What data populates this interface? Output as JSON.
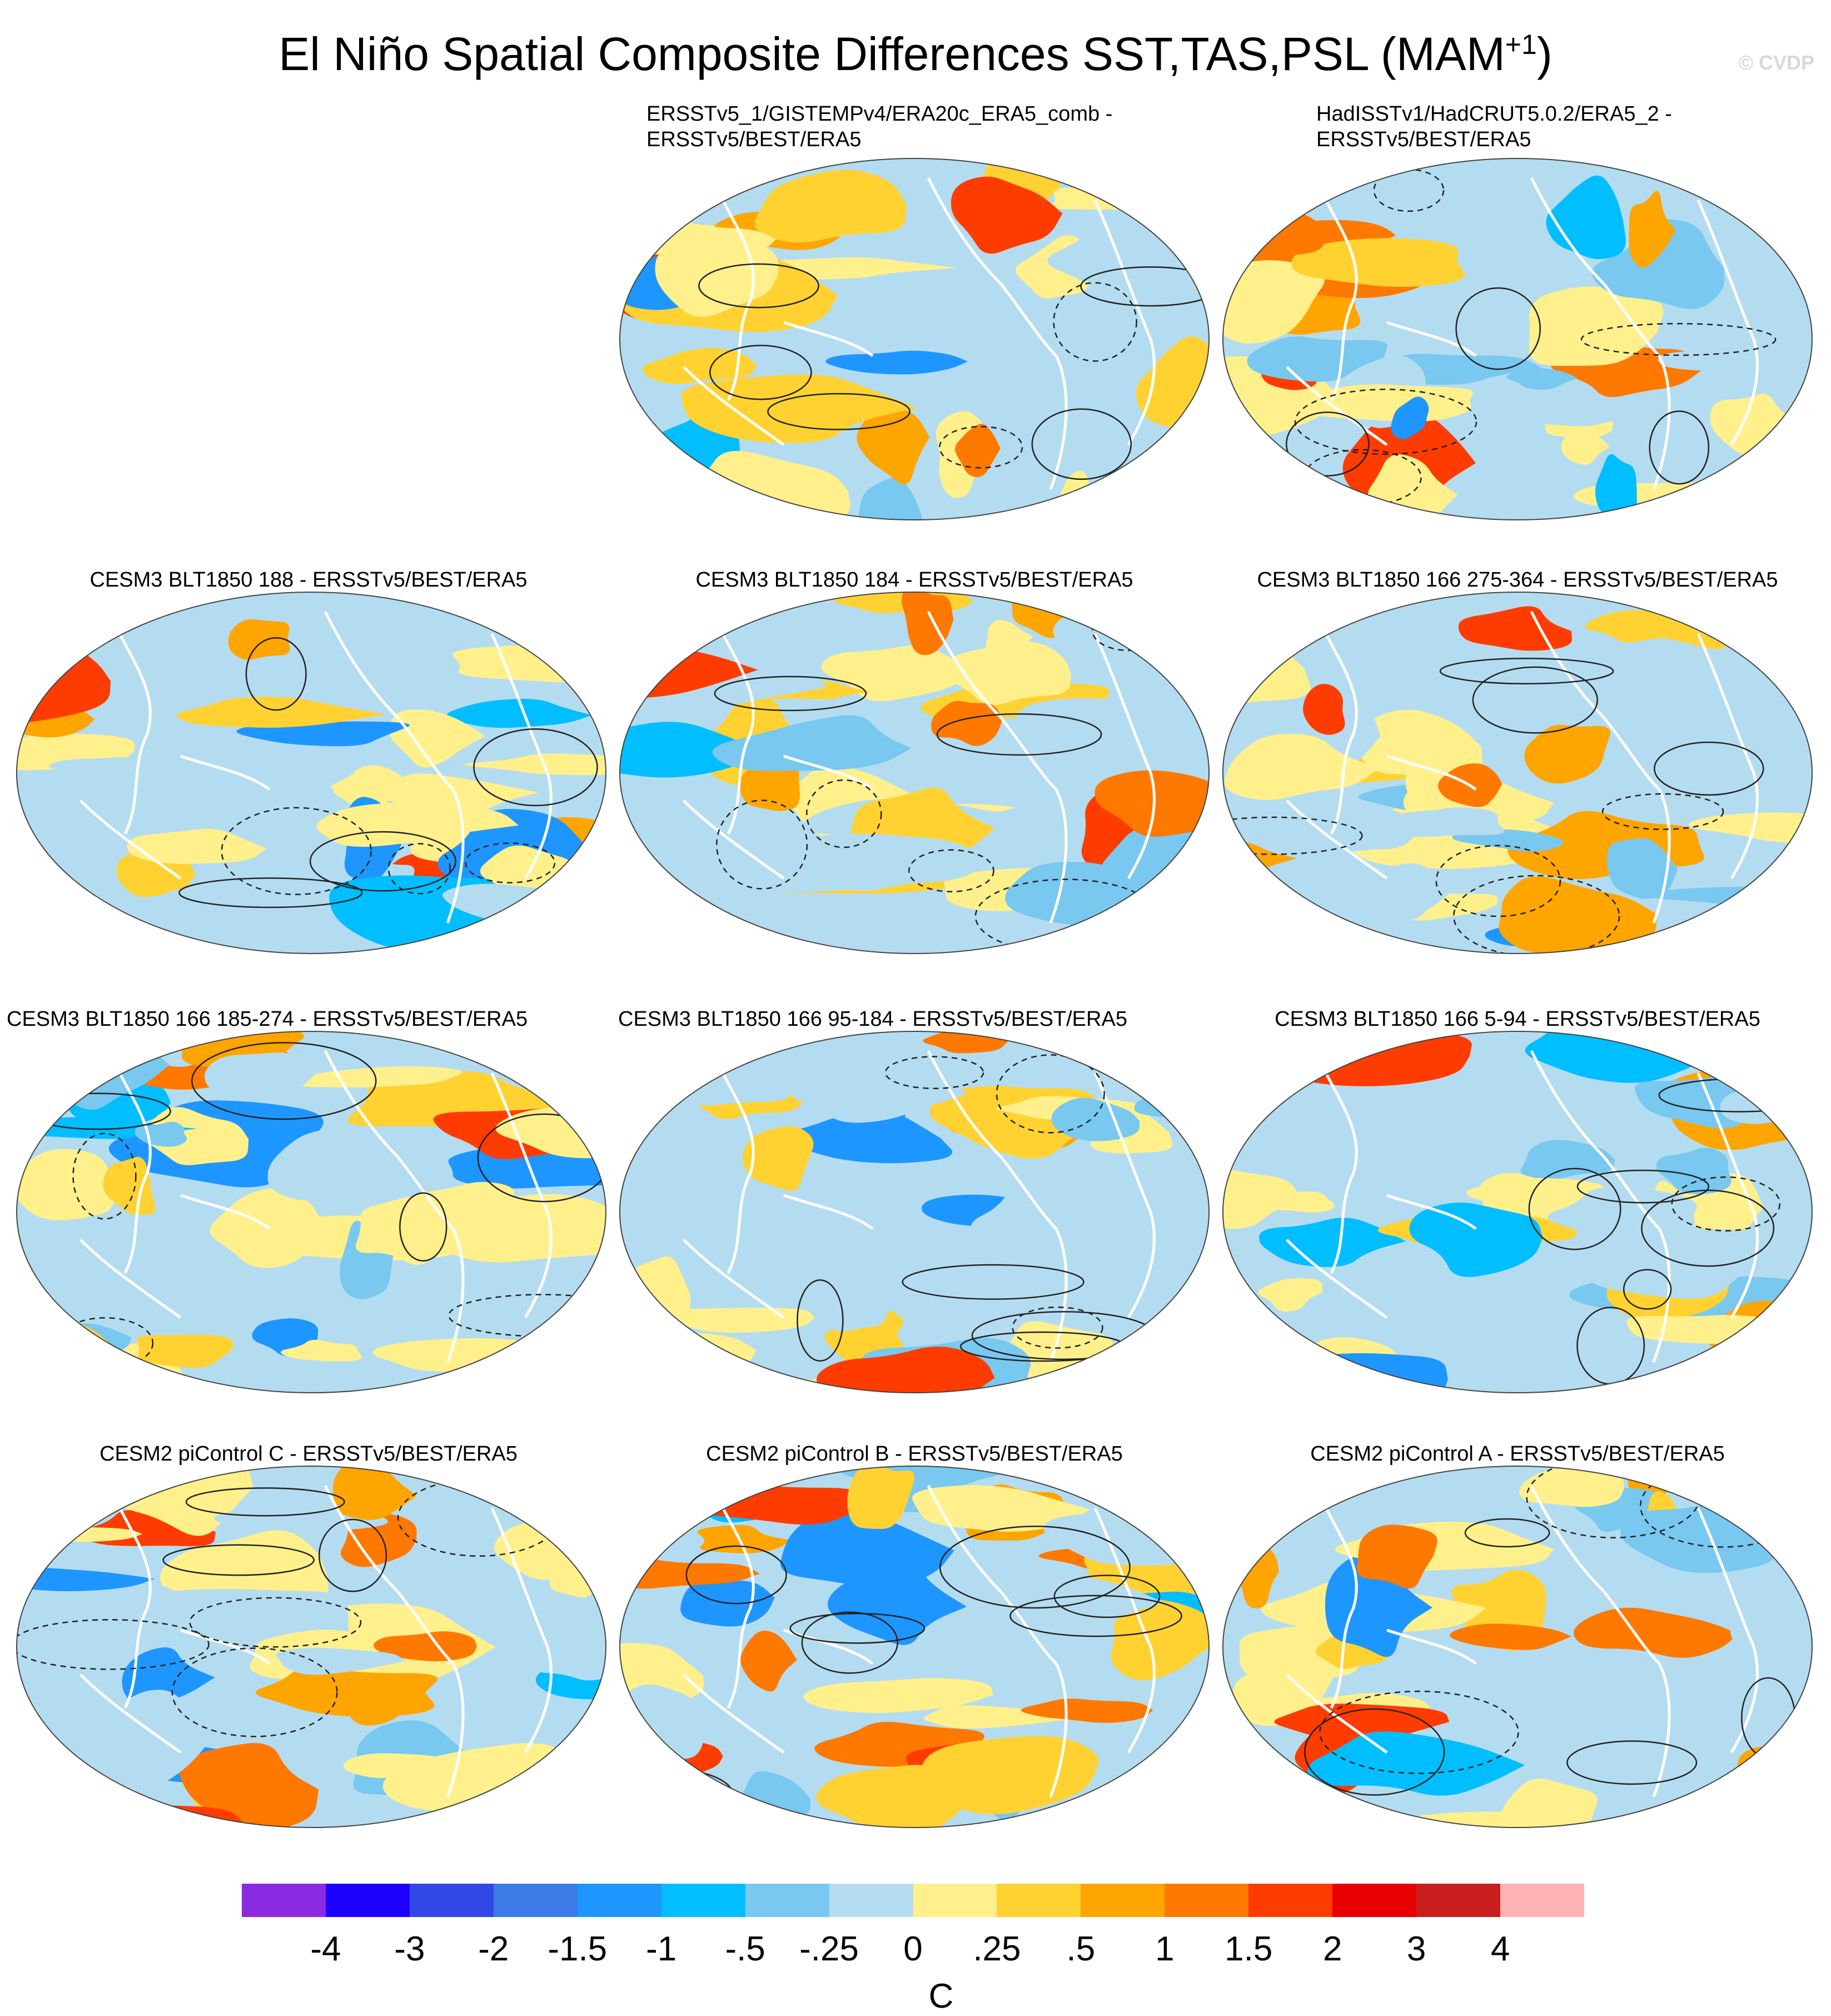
{
  "title": {
    "main": "El Niño Spatial Composite Differences SST,TAS,PSL (MAM",
    "sup": "+1",
    "close": ")"
  },
  "copyright": "© CVDP",
  "panels": [
    {
      "title_lines": [
        "ERSSTv5_1/GISTEMPv4/ERA20c_ERA5_comb -",
        "ERSSTv5/BEST/ERA5"
      ],
      "seed": 11
    },
    {
      "title_lines": [
        "HadISSTv1/HadCRUT5.0.2/ERA5_2 -",
        "ERSSTv5/BEST/ERA5"
      ],
      "seed": 23
    },
    {
      "title_lines": [
        "CESM3 BLT1850 188 - ERSSTv5/BEST/ERA5"
      ],
      "seed": 37
    },
    {
      "title_lines": [
        "CESM3 BLT1850 184 - ERSSTv5/BEST/ERA5"
      ],
      "seed": 41
    },
    {
      "title_lines": [
        "CESM3 BLT1850 166 275-364 - ERSSTv5/BEST/ERA5"
      ],
      "seed": 53
    },
    {
      "title_lines": [
        "CESM3 BLT1850 166 185-274 - ERSSTv5/BEST/ERA5"
      ],
      "seed": 61
    },
    {
      "title_lines": [
        "CESM3 BLT1850 166 95-184 - ERSSTv5/BEST/ERA5"
      ],
      "seed": 71
    },
    {
      "title_lines": [
        "CESM3 BLT1850 166 5-94 - ERSSTv5/BEST/ERA5"
      ],
      "seed": 83
    },
    {
      "title_lines": [
        "CESM2 piControl C - ERSSTv5/BEST/ERA5"
      ],
      "seed": 97
    },
    {
      "title_lines": [
        "CESM2 piControl B - ERSSTv5/BEST/ERA5"
      ],
      "seed": 101
    },
    {
      "title_lines": [
        "CESM2 piControl A - ERSSTv5/BEST/ERA5"
      ],
      "seed": 113
    }
  ],
  "colorbar": {
    "colors": [
      "#8a2be2",
      "#1e00ff",
      "#3248e6",
      "#3c7ce6",
      "#1e96ff",
      "#00beff",
      "#78c8f0",
      "#b4dcf0",
      "#fff08c",
      "#ffd232",
      "#ffa500",
      "#ff7800",
      "#ff3c00",
      "#e60000",
      "#c81e1e",
      "#ffb4b4"
    ],
    "labels": [
      "-4",
      "-3",
      "-2",
      "-1.5",
      "-1",
      "-.5",
      "-.25",
      "0",
      ".25",
      ".5",
      "1",
      "1.5",
      "2",
      "3",
      "4"
    ],
    "unit": "C"
  }
}
